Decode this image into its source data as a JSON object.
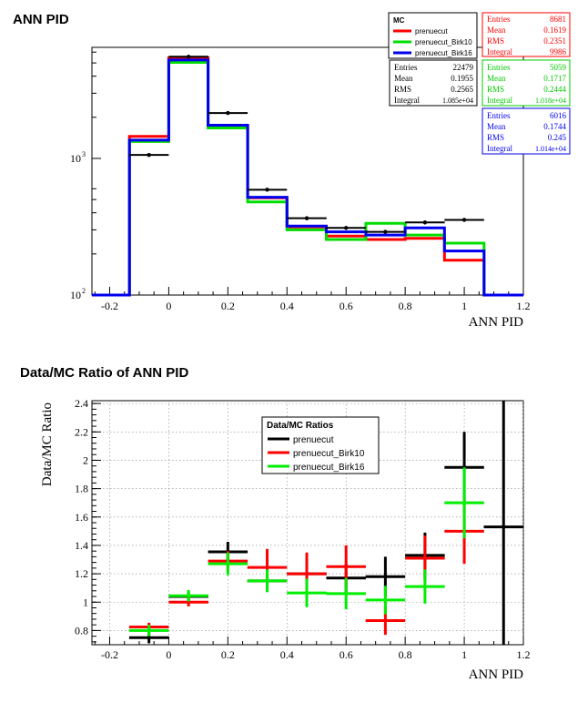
{
  "chart_data": [
    {
      "type": "histogram",
      "title": "ANN PID",
      "xlabel": "ANN PID",
      "xlim": [
        -0.26,
        1.2
      ],
      "ylim": [
        100,
        6500
      ],
      "y_scale": "log",
      "x_ticks": [
        "-0.2",
        "0",
        "0.2",
        "0.4",
        "0.6",
        "0.8",
        "1",
        "1.2"
      ],
      "y_ticks": [
        {
          "base": "10",
          "exp": "2",
          "value": 100
        },
        {
          "base": "10",
          "exp": "3",
          "value": 1000
        }
      ],
      "bin_edges": [
        -0.26,
        -0.133,
        0,
        0.133,
        0.267,
        0.4,
        0.533,
        0.667,
        0.8,
        0.933,
        1.067,
        1.2
      ],
      "legend": {
        "title": "MC",
        "entries": [
          "prenuecut",
          "prenuecut_Birk10",
          "prenuecut_Birk16"
        ],
        "placement": "top-right"
      },
      "series": [
        {
          "name": "prenuecut",
          "color": "#ff0000",
          "style": "hist",
          "values": [
            0,
            1450,
            5450,
            1700,
            515,
            315,
            270,
            255,
            260,
            180,
            0
          ]
        },
        {
          "name": "prenuecut_Birk10",
          "color": "#00dd00",
          "style": "hist",
          "values": [
            0,
            1330,
            5050,
            1670,
            480,
            300,
            255,
            335,
            275,
            240,
            0
          ]
        },
        {
          "name": "prenuecut_Birk16",
          "color": "#0000ee",
          "style": "hist",
          "values": [
            0,
            1360,
            5250,
            1750,
            520,
            320,
            290,
            275,
            310,
            210,
            0
          ]
        },
        {
          "name": "data",
          "color": "#000000",
          "style": "points",
          "x": [
            -0.067,
            0.067,
            0.2,
            0.333,
            0.467,
            0.6,
            0.733,
            0.867,
            1.0
          ],
          "values": [
            1060,
            5550,
            2150,
            590,
            365,
            310,
            290,
            340,
            355
          ]
        }
      ],
      "stats_boxes": [
        {
          "color": "#ff0000",
          "rows": [
            [
              "Entries",
              "8681"
            ],
            [
              "Mean",
              "0.1619"
            ],
            [
              "RMS",
              "0.2351"
            ],
            [
              "Integral",
              "9986"
            ]
          ]
        },
        {
          "color": "#000000",
          "rows": [
            [
              "Entries",
              "22479"
            ],
            [
              "Mean",
              "0.1955"
            ],
            [
              "RMS",
              "0.2565"
            ],
            [
              "Integral",
              "1.085e+04"
            ]
          ]
        },
        {
          "color": "#00cc00",
          "rows": [
            [
              "Entries",
              "5059"
            ],
            [
              "Mean",
              "0.1717"
            ],
            [
              "RMS",
              "0.2444"
            ],
            [
              "Integral",
              "1.018e+04"
            ]
          ]
        },
        {
          "color": "#0000ee",
          "rows": [
            [
              "Entries",
              "6016"
            ],
            [
              "Mean",
              "0.1744"
            ],
            [
              "RMS",
              "0.245"
            ],
            [
              "Integral",
              "1.014e+04"
            ]
          ]
        }
      ]
    },
    {
      "type": "scatter",
      "title": "Data/MC Ratio of ANN PID",
      "xlabel": "ANN PID",
      "ylabel": "Data/MC Ratio",
      "xlim": [
        -0.26,
        1.2
      ],
      "ylim": [
        0.7,
        2.42
      ],
      "grid": true,
      "x_ticks": [
        "-0.2",
        "0",
        "0.2",
        "0.4",
        "0.6",
        "0.8",
        "1",
        "1.2"
      ],
      "y_ticks": [
        "0.8",
        "1",
        "1.2",
        "1.4",
        "1.6",
        "1.8",
        "2",
        "2.2",
        "2.4"
      ],
      "x": [
        -0.067,
        0.067,
        0.2,
        0.333,
        0.467,
        0.6,
        0.733,
        0.867,
        1.0,
        1.133
      ],
      "x_half_width": 0.067,
      "legend": {
        "title": "Data/MC Ratios",
        "placement": "top-center"
      },
      "series": [
        {
          "name": "prenuecut",
          "color": "#000000",
          "values": [
            0.75,
            1.04,
            1.355,
            1.15,
            1.2,
            1.17,
            1.18,
            1.33,
            1.95,
            1.53
          ],
          "errors": [
            0.04,
            0.03,
            0.07,
            0.06,
            0.09,
            0.1,
            0.14,
            0.16,
            0.25,
            1.5
          ]
        },
        {
          "name": "prenuecut_Birk10",
          "color": "#ff0000",
          "values": [
            0.825,
            1.0,
            1.29,
            1.245,
            1.2,
            1.25,
            0.87,
            1.31,
            1.5,
            null
          ],
          "errors": [
            0.03,
            0.03,
            0.07,
            0.13,
            0.15,
            0.15,
            0.1,
            0.16,
            0.23,
            null
          ]
        },
        {
          "name": "prenuecut_Birk16",
          "color": "#00ee00",
          "values": [
            0.8,
            1.045,
            1.27,
            1.15,
            1.065,
            1.06,
            1.015,
            1.11,
            1.7,
            null
          ],
          "errors": [
            0.04,
            0.04,
            0.08,
            0.08,
            0.1,
            0.11,
            0.1,
            0.12,
            0.25,
            null
          ]
        }
      ]
    }
  ]
}
